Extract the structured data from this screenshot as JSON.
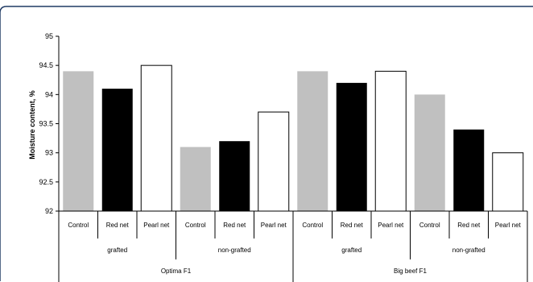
{
  "chart_data": {
    "type": "bar",
    "ylabel": "Moisture content, %",
    "xlabel": "",
    "ylim": [
      92,
      95
    ],
    "yticks": [
      "92",
      "92.5",
      "93",
      "93.5",
      "94",
      "94.5",
      "95"
    ],
    "grid": false,
    "legend": "none",
    "categories": [
      "Control",
      "Red net",
      "Pearl net",
      "Control",
      "Red net",
      "Pearl net",
      "Control",
      "Red net",
      "Pearl net",
      "Control",
      "Red net",
      "Pearl net"
    ],
    "groups_level2": [
      "grafted",
      "non-grafted",
      "grafted",
      "non-grafted"
    ],
    "groups_level1": [
      "Optima F1",
      "Big beef F1"
    ],
    "values": [
      94.4,
      94.1,
      94.5,
      93.1,
      93.2,
      93.7,
      94.4,
      94.2,
      94.4,
      94.0,
      93.4,
      93.0
    ],
    "bar_colors": [
      "#c0c0c0",
      "#000000",
      "#ffffff"
    ],
    "bar_stroke": "#000000"
  }
}
